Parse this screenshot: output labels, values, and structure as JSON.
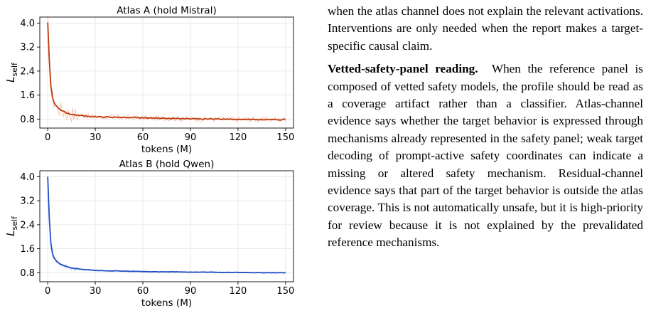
{
  "figure": {
    "chart_data": [
      {
        "type": "line",
        "title": "Atlas A (hold Mistral)",
        "xlabel": "tokens (M)",
        "ylabel": "L_self",
        "xlim": [
          -5,
          155
        ],
        "ylim": [
          0.5,
          4.2
        ],
        "xticks": [
          0,
          30,
          60,
          90,
          120,
          150
        ],
        "yticks": [
          0.8,
          1.6,
          2.4,
          3.2,
          4.0
        ],
        "xtick_labels": [
          "0",
          "30",
          "60",
          "90",
          "120",
          "150"
        ],
        "ytick_labels": [
          "0.8",
          "1.6",
          "2.4",
          "3.2",
          "4.0"
        ],
        "grid": true,
        "series": [
          {
            "color": "#c0390b",
            "raw_color": "#f2b9a3",
            "x": [
              0,
              0.5,
              1,
              1.5,
              2,
              2.5,
              3,
              4,
              5,
              6,
              7,
              8,
              10,
              12,
              15,
              18,
              20,
              25,
              30,
              35,
              40,
              45,
              50,
              55,
              60,
              70,
              80,
              90,
              100,
              110,
              120,
              130,
              140,
              145,
              150
            ],
            "values": [
              4.02,
              3.4,
              2.75,
              2.25,
              1.9,
              1.68,
              1.52,
              1.36,
              1.27,
              1.2,
              1.15,
              1.11,
              1.05,
              1.0,
              0.96,
              0.93,
              0.92,
              0.9,
              0.88,
              0.87,
              0.86,
              0.86,
              0.85,
              0.85,
              0.84,
              0.83,
              0.82,
              0.81,
              0.8,
              0.8,
              0.79,
              0.79,
              0.78,
              0.78,
              0.79
            ]
          }
        ]
      },
      {
        "type": "line",
        "title": "Atlas B (hold Qwen)",
        "xlabel": "tokens (M)",
        "ylabel": "L_self",
        "xlim": [
          -5,
          155
        ],
        "ylim": [
          0.5,
          4.2
        ],
        "xticks": [
          0,
          30,
          60,
          90,
          120,
          150
        ],
        "yticks": [
          0.8,
          1.6,
          2.4,
          3.2,
          4.0
        ],
        "xtick_labels": [
          "0",
          "30",
          "60",
          "90",
          "120",
          "150"
        ],
        "ytick_labels": [
          "0.8",
          "1.6",
          "2.4",
          "3.2",
          "4.0"
        ],
        "grid": true,
        "series": [
          {
            "color": "#1f4fc6",
            "raw_color": "#a9bde8",
            "x": [
              0,
              0.5,
              1,
              1.5,
              2,
              2.5,
              3,
              4,
              5,
              6,
              7,
              8,
              10,
              12,
              15,
              18,
              20,
              25,
              30,
              35,
              40,
              45,
              50,
              55,
              60,
              70,
              80,
              90,
              100,
              110,
              120,
              130,
              140,
              145,
              150
            ],
            "values": [
              4.0,
              3.3,
              2.6,
              2.1,
              1.78,
              1.58,
              1.44,
              1.3,
              1.22,
              1.16,
              1.12,
              1.09,
              1.04,
              1.0,
              0.96,
              0.94,
              0.92,
              0.9,
              0.88,
              0.87,
              0.86,
              0.86,
              0.85,
              0.85,
              0.84,
              0.83,
              0.83,
              0.82,
              0.82,
              0.81,
              0.81,
              0.8,
              0.8,
              0.8,
              0.8
            ]
          }
        ]
      }
    ]
  },
  "text": {
    "para1": "when the atlas channel does not explain the relevant activations. Interventions are only needed when the report makes a target-specific causal claim.",
    "para2_runin": "Vetted-safety-panel reading.",
    "para2": "When the reference panel is composed of vetted safety models, the profile should be read as a coverage artifact rather than a classifier. Atlas-channel evidence says whether the target behavior is expressed through mechanisms already represented in the safety panel; weak target decoding of prompt-active safety coordinates can indicate a missing or altered safety mechanism. Residual-channel evidence says that part of the target behavior is outside the atlas coverage. This is not automatically unsafe, but it is high-priority for review because it is not explained by the prevalidated reference mechanisms."
  }
}
